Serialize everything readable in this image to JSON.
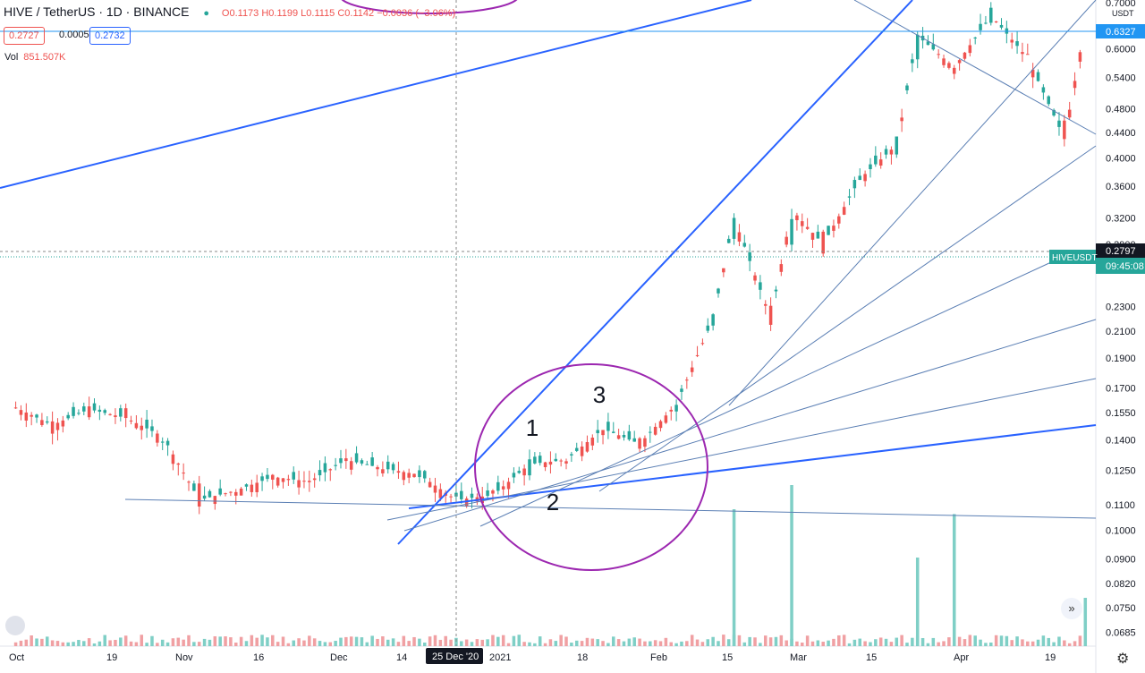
{
  "header": {
    "symbol": "HIVE / TetherUS · 1D · BINANCE",
    "ohlc": "O0.1173 H0.1199 L0.1115 C0.1142 −0.0036 (−3.06%)",
    "bid": "0.2727",
    "spread": "0.0005",
    "ask": "0.2732",
    "volume_label": "Vol",
    "volume_value": "851.507K"
  },
  "price_scale": {
    "currency": "USDT",
    "top_label": "0.7000",
    "ticks": [
      "0.6000",
      "0.5400",
      "0.4800",
      "0.4400",
      "0.4000",
      "0.3600",
      "0.3200",
      "0.2900",
      "0.2300",
      "0.2100",
      "0.1900",
      "0.1700",
      "0.1550",
      "0.1400",
      "0.1250",
      "0.1100",
      "0.1000",
      "0.0900",
      "0.0820",
      "0.0750",
      "0.0685"
    ],
    "horizontal_line_label": "0.6327",
    "last_price_label": "0.2797",
    "last_price_symbol": "HIVEUSDT",
    "countdown": "09:45:08"
  },
  "time_scale": {
    "ticks": [
      "Oct",
      "19",
      "Nov",
      "16",
      "Dec",
      "14",
      "2021",
      "18",
      "Feb",
      "15",
      "Mar",
      "15",
      "Apr",
      "19"
    ],
    "crosshair_label": "25 Dec '20"
  },
  "annotations": [
    "1",
    "2",
    "3"
  ],
  "colors": {
    "up": "#26a69a",
    "down": "#ef5350",
    "trendline": "#2962ff",
    "fan": "#5b7fb4",
    "circle": "#9c27b0",
    "hline": "#2196f3",
    "volume_up": "#7fcfc6",
    "volume_down": "#f0a0a3"
  },
  "chart_data": {
    "type": "candlestick",
    "x_range": [
      "2020-09-28",
      "2021-04-25"
    ],
    "y_scale": "log",
    "y_range": [
      0.065,
      0.72
    ],
    "close_price_path": [
      {
        "date": "2020-10-01",
        "close": 0.158
      },
      {
        "date": "2020-10-08",
        "close": 0.148
      },
      {
        "date": "2020-10-15",
        "close": 0.157
      },
      {
        "date": "2020-10-22",
        "close": 0.152
      },
      {
        "date": "2020-10-29",
        "close": 0.142
      },
      {
        "date": "2020-11-05",
        "close": 0.112
      },
      {
        "date": "2020-11-12",
        "close": 0.116
      },
      {
        "date": "2020-11-19",
        "close": 0.122
      },
      {
        "date": "2020-11-26",
        "close": 0.12
      },
      {
        "date": "2020-12-03",
        "close": 0.13
      },
      {
        "date": "2020-12-10",
        "close": 0.126
      },
      {
        "date": "2020-12-17",
        "close": 0.123
      },
      {
        "date": "2020-12-24",
        "close": 0.112
      },
      {
        "date": "2020-12-31",
        "close": 0.114
      },
      {
        "date": "2021-01-07",
        "close": 0.128
      },
      {
        "date": "2021-01-14",
        "close": 0.13
      },
      {
        "date": "2021-01-21",
        "close": 0.146
      },
      {
        "date": "2021-01-28",
        "close": 0.138
      },
      {
        "date": "2021-02-04",
        "close": 0.16
      },
      {
        "date": "2021-02-11",
        "close": 0.22
      },
      {
        "date": "2021-02-15",
        "close": 0.32
      },
      {
        "date": "2021-02-22",
        "close": 0.22
      },
      {
        "date": "2021-02-26",
        "close": 0.33
      },
      {
        "date": "2021-03-04",
        "close": 0.29
      },
      {
        "date": "2021-03-11",
        "close": 0.37
      },
      {
        "date": "2021-03-18",
        "close": 0.42
      },
      {
        "date": "2021-03-22",
        "close": 0.63
      },
      {
        "date": "2021-03-29",
        "close": 0.56
      },
      {
        "date": "2021-04-05",
        "close": 0.68
      },
      {
        "date": "2021-04-12",
        "close": 0.58
      },
      {
        "date": "2021-04-19",
        "close": 0.43
      },
      {
        "date": "2021-04-23",
        "close": 0.66
      }
    ],
    "volume_spikes": [
      {
        "date": "2021-02-15",
        "relative": 0.85
      },
      {
        "date": "2021-02-26",
        "relative": 1.0
      },
      {
        "date": "2021-03-22",
        "relative": 0.55
      },
      {
        "date": "2021-03-29",
        "relative": 0.82
      },
      {
        "date": "2021-04-23",
        "relative": 0.3
      }
    ]
  }
}
